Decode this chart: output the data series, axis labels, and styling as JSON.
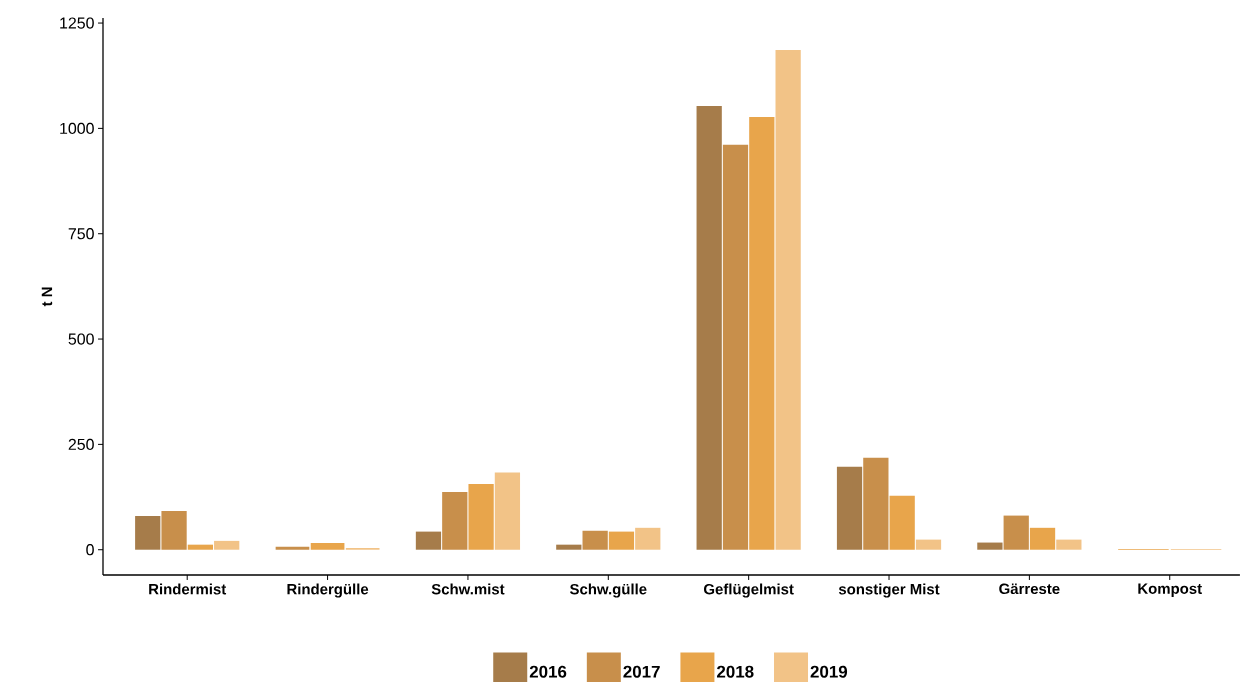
{
  "chart_data": {
    "type": "bar",
    "ylabel": "t N",
    "categories": [
      "Rindermist",
      "Rindergülle",
      "Schw.mist",
      "Schw.gülle",
      "Geflügelmist",
      "sonstiger Mist",
      "Gärreste",
      "Kompost"
    ],
    "series": [
      {
        "name": "2016",
        "color": "#a67c4a",
        "values": [
          80,
          null,
          43,
          12,
          1053,
          197,
          17,
          null
        ]
      },
      {
        "name": "2017",
        "color": "#c88f4b",
        "values": [
          92,
          7,
          137,
          45,
          961,
          218,
          81,
          null
        ]
      },
      {
        "name": "2018",
        "color": "#e8a54b",
        "values": [
          12,
          16,
          156,
          43,
          1027,
          128,
          52,
          2
        ]
      },
      {
        "name": "2019",
        "color": "#f2c387",
        "values": [
          21,
          4,
          183,
          52,
          1186,
          24,
          24,
          2
        ]
      }
    ],
    "ylim": [
      -60,
      1262
    ],
    "yticks": [
      0,
      250,
      500,
      750,
      1000,
      1250
    ],
    "grid": false,
    "legend": "bottom"
  }
}
